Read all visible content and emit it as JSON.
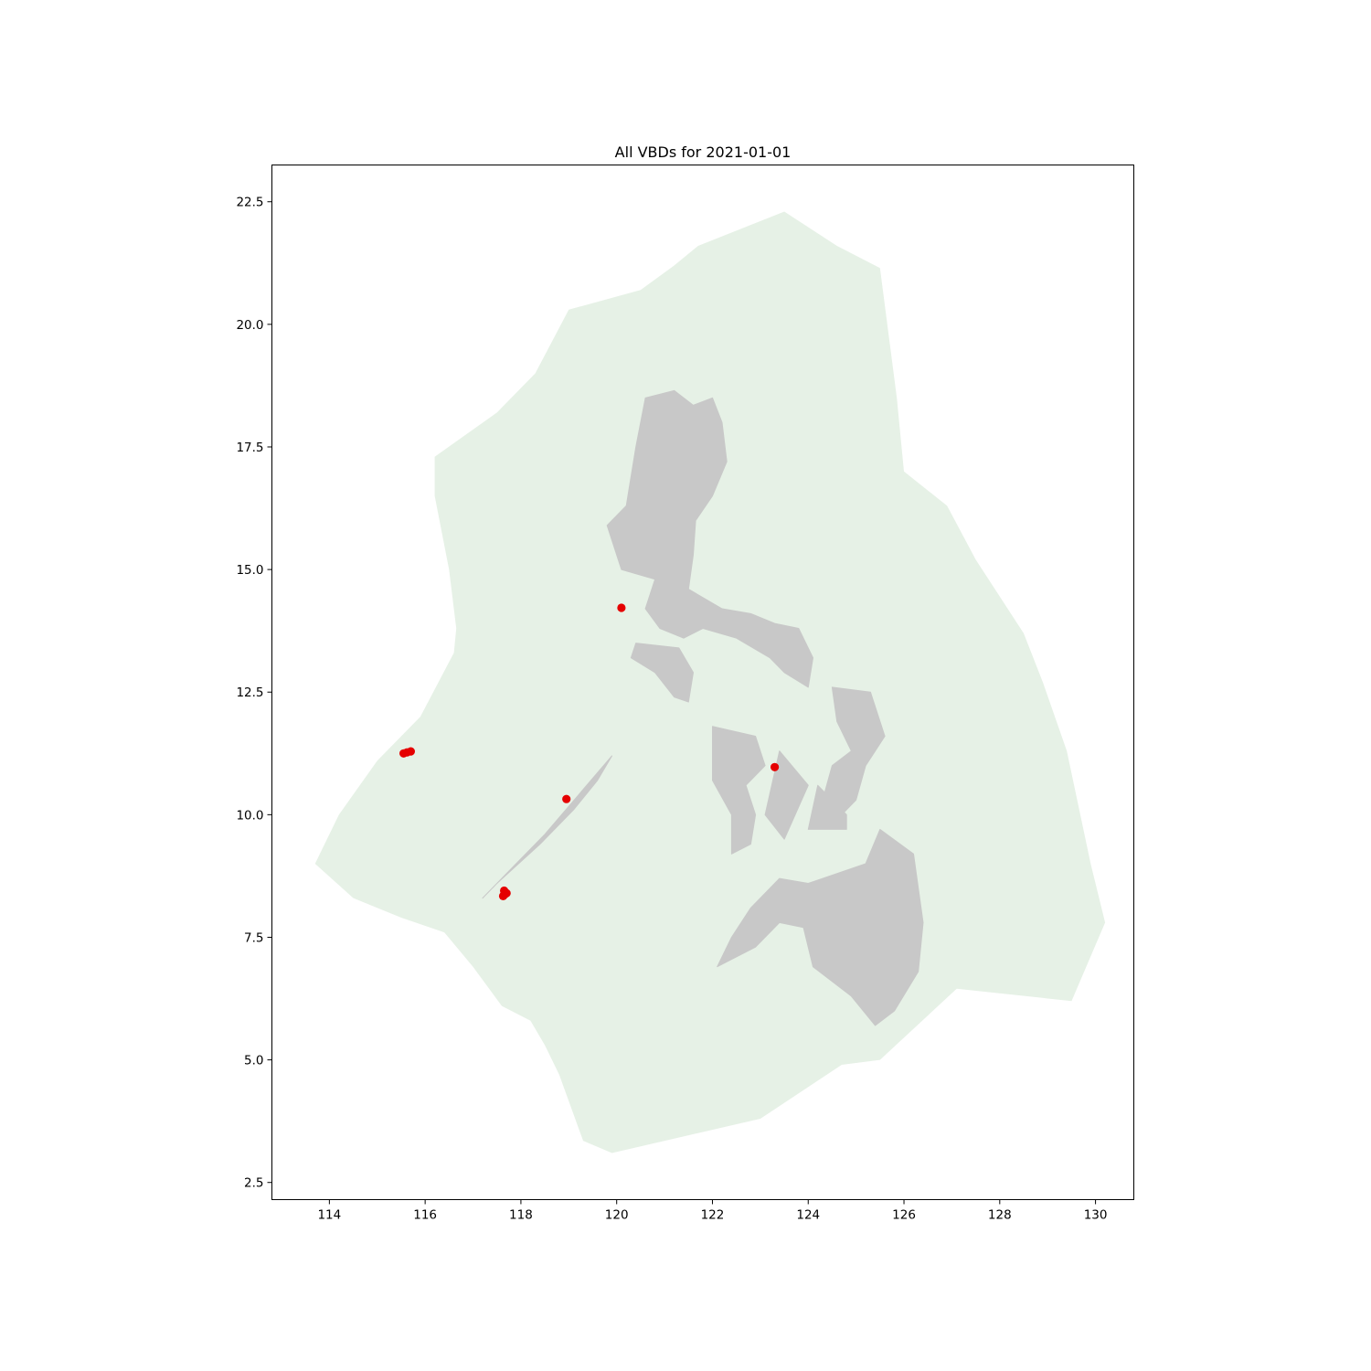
{
  "chart_data": {
    "type": "scatter",
    "title": "All VBDs for 2021-01-01",
    "xlabel": "",
    "ylabel": "",
    "xlim": [
      112.8,
      130.8
    ],
    "ylim": [
      2.15,
      23.25
    ],
    "x_ticks": [
      114,
      116,
      118,
      120,
      122,
      124,
      126,
      128,
      130
    ],
    "x_tick_labels": [
      "114",
      "116",
      "118",
      "120",
      "122",
      "124",
      "126",
      "128",
      "130"
    ],
    "y_ticks": [
      2.5,
      5.0,
      7.5,
      10.0,
      12.5,
      15.0,
      17.5,
      20.0,
      22.5
    ],
    "y_tick_labels": [
      "2.5",
      "5.0",
      "7.5",
      "10.0",
      "12.5",
      "15.0",
      "17.5",
      "20.0",
      "22.5"
    ],
    "grid": false,
    "colors": {
      "eez_fill": "#e6f1e6",
      "land_fill": "#c8c8c8",
      "points": "#e50000"
    },
    "layers": {
      "eez": [
        [
          113.7,
          9.0
        ],
        [
          114.2,
          10.0
        ],
        [
          115.0,
          11.1
        ],
        [
          115.9,
          12.0
        ],
        [
          116.6,
          13.3
        ],
        [
          116.65,
          13.8
        ],
        [
          116.5,
          15.0
        ],
        [
          116.2,
          16.5
        ],
        [
          116.2,
          17.3
        ],
        [
          117.5,
          18.2
        ],
        [
          118.3,
          19.0
        ],
        [
          119.0,
          20.3
        ],
        [
          120.5,
          20.7
        ],
        [
          121.2,
          21.2
        ],
        [
          121.7,
          21.6
        ],
        [
          123.5,
          22.3
        ],
        [
          124.6,
          21.6
        ],
        [
          125.5,
          21.15
        ],
        [
          125.85,
          18.5
        ],
        [
          126.0,
          17.0
        ],
        [
          126.9,
          16.3
        ],
        [
          127.5,
          15.2
        ],
        [
          127.9,
          14.6
        ],
        [
          128.5,
          13.7
        ],
        [
          128.9,
          12.7
        ],
        [
          129.4,
          11.3
        ],
        [
          129.9,
          9.0
        ],
        [
          130.2,
          7.8
        ],
        [
          129.5,
          6.2
        ],
        [
          127.1,
          6.45
        ],
        [
          125.5,
          5.0
        ],
        [
          124.7,
          4.9
        ],
        [
          123.0,
          3.8
        ],
        [
          119.9,
          3.1
        ],
        [
          119.3,
          3.35
        ],
        [
          118.8,
          4.7
        ],
        [
          118.5,
          5.3
        ],
        [
          118.2,
          5.8
        ],
        [
          117.6,
          6.1
        ],
        [
          117.0,
          6.9
        ],
        [
          116.4,
          7.6
        ],
        [
          115.5,
          7.9
        ],
        [
          114.5,
          8.3
        ]
      ],
      "land": [
        [
          [
            120.6,
            18.5
          ],
          [
            121.2,
            18.65
          ],
          [
            121.6,
            18.35
          ],
          [
            122.0,
            18.5
          ],
          [
            122.2,
            18.0
          ],
          [
            122.3,
            17.2
          ],
          [
            122.0,
            16.5
          ],
          [
            121.65,
            16.0
          ],
          [
            121.6,
            15.3
          ],
          [
            121.5,
            14.6
          ],
          [
            122.2,
            14.2
          ],
          [
            122.8,
            14.1
          ],
          [
            123.3,
            13.9
          ],
          [
            123.8,
            13.8
          ],
          [
            124.1,
            13.2
          ],
          [
            124.0,
            12.6
          ],
          [
            123.5,
            12.9
          ],
          [
            123.2,
            13.2
          ],
          [
            122.5,
            13.6
          ],
          [
            121.8,
            13.8
          ],
          [
            121.4,
            13.6
          ],
          [
            120.9,
            13.8
          ],
          [
            120.6,
            14.2
          ],
          [
            120.8,
            14.8
          ],
          [
            120.1,
            15.0
          ],
          [
            119.8,
            15.9
          ],
          [
            120.2,
            16.3
          ],
          [
            120.4,
            17.5
          ]
        ],
        [
          [
            120.4,
            13.5
          ],
          [
            121.3,
            13.4
          ],
          [
            121.6,
            12.9
          ],
          [
            121.5,
            12.3
          ],
          [
            121.2,
            12.4
          ],
          [
            120.8,
            12.9
          ],
          [
            120.3,
            13.2
          ]
        ],
        [
          [
            119.9,
            11.2
          ],
          [
            119.2,
            10.4
          ],
          [
            118.5,
            9.6
          ],
          [
            117.8,
            8.9
          ],
          [
            117.2,
            8.3
          ],
          [
            117.5,
            8.6
          ],
          [
            118.4,
            9.4
          ],
          [
            119.1,
            10.1
          ],
          [
            119.6,
            10.7
          ]
        ],
        [
          [
            122.0,
            11.8
          ],
          [
            122.9,
            11.6
          ],
          [
            123.1,
            11.0
          ],
          [
            122.7,
            10.6
          ],
          [
            122.9,
            10.0
          ],
          [
            122.8,
            9.4
          ],
          [
            122.4,
            9.2
          ],
          [
            122.4,
            10.0
          ],
          [
            122.0,
            10.7
          ]
        ],
        [
          [
            123.4,
            11.3
          ],
          [
            124.0,
            10.6
          ],
          [
            123.5,
            9.5
          ],
          [
            123.1,
            10.0
          ]
        ],
        [
          [
            124.2,
            10.6
          ],
          [
            124.8,
            10.0
          ],
          [
            124.8,
            9.7
          ],
          [
            124.0,
            9.7
          ]
        ],
        [
          [
            124.5,
            12.6
          ],
          [
            125.3,
            12.5
          ],
          [
            125.6,
            11.6
          ],
          [
            125.2,
            11.0
          ],
          [
            124.9,
            11.3
          ],
          [
            124.6,
            11.9
          ]
        ],
        [
          [
            124.9,
            11.3
          ],
          [
            125.2,
            11.0
          ],
          [
            125.0,
            10.3
          ],
          [
            124.7,
            10.0
          ],
          [
            124.3,
            10.3
          ],
          [
            124.5,
            11.0
          ]
        ],
        [
          [
            124.0,
            8.6
          ],
          [
            125.2,
            9.0
          ],
          [
            125.5,
            9.7
          ],
          [
            126.2,
            9.2
          ],
          [
            126.4,
            7.8
          ],
          [
            126.3,
            6.8
          ],
          [
            125.8,
            6.0
          ],
          [
            125.4,
            5.7
          ],
          [
            124.9,
            6.3
          ],
          [
            124.1,
            6.9
          ],
          [
            123.9,
            7.7
          ],
          [
            123.4,
            7.8
          ],
          [
            122.9,
            7.3
          ],
          [
            122.1,
            6.9
          ],
          [
            122.4,
            7.5
          ],
          [
            122.8,
            8.1
          ],
          [
            123.4,
            8.7
          ]
        ]
      ]
    },
    "series": [
      {
        "x": [
          115.55,
          115.62,
          115.7,
          117.65,
          117.7,
          117.66,
          117.63,
          118.95,
          120.1,
          123.3
        ],
        "y": [
          11.25,
          11.27,
          11.29,
          8.45,
          8.4,
          8.37,
          8.34,
          10.32,
          14.22,
          10.97
        ]
      }
    ]
  }
}
